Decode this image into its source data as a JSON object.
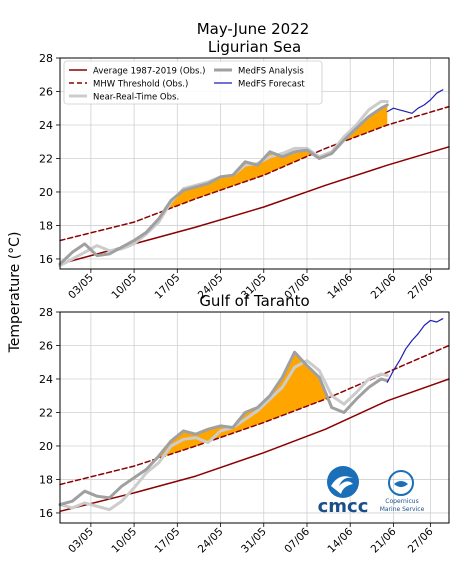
{
  "figure": {
    "title_line1": "May-June 2022",
    "ylabel": "Temperature (°C)"
  },
  "colors": {
    "average": "#8b0000",
    "threshold": "#8b0000",
    "nrt": "#cccccc",
    "analysis": "#a0a0a0",
    "forecast": "#1f1fb4",
    "mhw_fill": "#ffa500",
    "grid": "#d0d0d0"
  },
  "legend": {
    "location": "top-left",
    "items": [
      {
        "key": "average",
        "label": "Average 1987-2019 (Obs.)"
      },
      {
        "key": "threshold",
        "label": "MHW Threshold (Obs.)"
      },
      {
        "key": "nrt",
        "label": "Near-Real-Time Obs."
      },
      {
        "key": "analysis",
        "label": "MedFS Analysis"
      },
      {
        "key": "forecast",
        "label": "MedFS Forecast"
      }
    ]
  },
  "logos": {
    "cmcc": "cmcc",
    "copernicus_line1": "Copernicus",
    "copernicus_line2": "Marine Service"
  },
  "chart_data": [
    {
      "type": "line",
      "title": "Ligurian Sea",
      "xlabel": "",
      "ylabel": "Temperature (°C)",
      "xlim": [
        "2022-04-28",
        "2022-06-30"
      ],
      "ylim": [
        15.4,
        28
      ],
      "yticks": [
        16,
        18,
        20,
        22,
        24,
        26,
        28
      ],
      "xticks": [
        "03/05",
        "10/05",
        "17/05",
        "24/05",
        "31/05",
        "07/06",
        "14/06",
        "21/06",
        "27/06"
      ],
      "grid": true,
      "series": [
        {
          "name": "Average 1987-2019 (Obs.)",
          "key": "average",
          "x": [
            "2022-04-28",
            "2022-05-10",
            "2022-05-20",
            "2022-05-31",
            "2022-06-10",
            "2022-06-20",
            "2022-06-30"
          ],
          "y": [
            15.7,
            16.9,
            17.9,
            19.1,
            20.4,
            21.6,
            22.7
          ]
        },
        {
          "name": "MHW Threshold (Obs.)",
          "key": "threshold",
          "x": [
            "2022-04-28",
            "2022-05-10",
            "2022-05-20",
            "2022-05-31",
            "2022-06-10",
            "2022-06-20",
            "2022-06-30"
          ],
          "y": [
            17.1,
            18.2,
            19.6,
            21.0,
            22.6,
            24.0,
            25.1
          ]
        },
        {
          "name": "Near-Real-Time Obs.",
          "key": "nrt",
          "x": [
            "2022-04-28",
            "2022-04-30",
            "2022-05-02",
            "2022-05-04",
            "2022-05-06",
            "2022-05-08",
            "2022-05-10",
            "2022-05-12",
            "2022-05-14",
            "2022-05-16",
            "2022-05-18",
            "2022-05-20",
            "2022-05-22",
            "2022-05-24",
            "2022-05-26",
            "2022-05-28",
            "2022-05-30",
            "2022-06-01",
            "2022-06-03",
            "2022-06-05",
            "2022-06-07",
            "2022-06-09",
            "2022-06-11",
            "2022-06-13",
            "2022-06-15",
            "2022-06-17",
            "2022-06-19",
            "2022-06-20"
          ],
          "y": [
            15.6,
            16.0,
            16.4,
            16.8,
            16.5,
            16.6,
            16.9,
            17.5,
            18.2,
            19.4,
            20.2,
            20.4,
            20.6,
            20.9,
            21.0,
            21.6,
            21.7,
            22.1,
            22.3,
            22.6,
            22.6,
            22.1,
            22.4,
            23.3,
            24.0,
            24.9,
            25.4,
            25.4
          ]
        },
        {
          "name": "MedFS Analysis",
          "key": "analysis",
          "x": [
            "2022-04-28",
            "2022-04-30",
            "2022-05-02",
            "2022-05-04",
            "2022-05-06",
            "2022-05-08",
            "2022-05-10",
            "2022-05-12",
            "2022-05-14",
            "2022-05-16",
            "2022-05-18",
            "2022-05-20",
            "2022-05-22",
            "2022-05-24",
            "2022-05-26",
            "2022-05-28",
            "2022-05-30",
            "2022-06-01",
            "2022-06-03",
            "2022-06-05",
            "2022-06-07",
            "2022-06-09",
            "2022-06-11",
            "2022-06-13",
            "2022-06-15",
            "2022-06-17",
            "2022-06-19",
            "2022-06-20"
          ],
          "y": [
            15.7,
            16.4,
            16.9,
            16.2,
            16.3,
            16.7,
            17.1,
            17.6,
            18.4,
            19.5,
            20.1,
            20.3,
            20.5,
            20.9,
            21.0,
            21.8,
            21.6,
            22.4,
            22.1,
            22.4,
            22.5,
            22.0,
            22.3,
            23.1,
            23.8,
            24.5,
            25.0,
            25.2
          ]
        },
        {
          "name": "MedFS Forecast",
          "key": "forecast",
          "x": [
            "2022-06-20",
            "2022-06-21",
            "2022-06-22",
            "2022-06-23",
            "2022-06-24",
            "2022-06-25",
            "2022-06-26",
            "2022-06-27",
            "2022-06-28",
            "2022-06-29"
          ],
          "y": [
            24.8,
            25.0,
            24.9,
            24.8,
            24.7,
            25.0,
            25.2,
            25.5,
            25.9,
            26.1
          ]
        }
      ]
    },
    {
      "type": "line",
      "title": "Gulf of Taranto",
      "xlabel": "",
      "ylabel": "Temperature (°C)",
      "xlim": [
        "2022-04-28",
        "2022-06-30"
      ],
      "ylim": [
        15.4,
        28
      ],
      "yticks": [
        16,
        18,
        20,
        22,
        24,
        26,
        28
      ],
      "xticks": [
        "03/05",
        "10/05",
        "17/05",
        "24/05",
        "31/05",
        "07/06",
        "14/06",
        "21/06",
        "27/06"
      ],
      "grid": true,
      "series": [
        {
          "name": "Average 1987-2019 (Obs.)",
          "key": "average",
          "x": [
            "2022-04-28",
            "2022-05-10",
            "2022-05-20",
            "2022-05-31",
            "2022-06-10",
            "2022-06-20",
            "2022-06-30"
          ],
          "y": [
            16.1,
            17.2,
            18.2,
            19.6,
            21.0,
            22.7,
            24.0
          ]
        },
        {
          "name": "MHW Threshold (Obs.)",
          "key": "threshold",
          "x": [
            "2022-04-28",
            "2022-05-10",
            "2022-05-20",
            "2022-05-31",
            "2022-06-10",
            "2022-06-20",
            "2022-06-30"
          ],
          "y": [
            17.7,
            18.8,
            20.0,
            21.4,
            22.8,
            24.4,
            26.0
          ]
        },
        {
          "name": "Near-Real-Time Obs.",
          "key": "nrt",
          "x": [
            "2022-04-28",
            "2022-04-30",
            "2022-05-02",
            "2022-05-04",
            "2022-05-06",
            "2022-05-08",
            "2022-05-10",
            "2022-05-12",
            "2022-05-14",
            "2022-05-16",
            "2022-05-18",
            "2022-05-20",
            "2022-05-22",
            "2022-05-24",
            "2022-05-26",
            "2022-05-28",
            "2022-05-30",
            "2022-06-01",
            "2022-06-03",
            "2022-06-05",
            "2022-06-07",
            "2022-06-09",
            "2022-06-11",
            "2022-06-13",
            "2022-06-15",
            "2022-06-17",
            "2022-06-19",
            "2022-06-20"
          ],
          "y": [
            16.5,
            16.3,
            16.6,
            16.4,
            16.2,
            16.7,
            17.5,
            18.4,
            19.0,
            20.0,
            20.4,
            20.5,
            20.2,
            20.9,
            21.1,
            21.6,
            22.1,
            22.8,
            23.5,
            24.7,
            25.1,
            24.5,
            23.0,
            22.5,
            23.2,
            24.0,
            24.3,
            24.2
          ]
        },
        {
          "name": "MedFS Analysis",
          "key": "analysis",
          "x": [
            "2022-04-28",
            "2022-04-30",
            "2022-05-02",
            "2022-05-04",
            "2022-05-06",
            "2022-05-08",
            "2022-05-10",
            "2022-05-12",
            "2022-05-14",
            "2022-05-16",
            "2022-05-18",
            "2022-05-20",
            "2022-05-22",
            "2022-05-24",
            "2022-05-26",
            "2022-05-28",
            "2022-05-30",
            "2022-06-01",
            "2022-06-03",
            "2022-06-05",
            "2022-06-07",
            "2022-06-09",
            "2022-06-11",
            "2022-06-13",
            "2022-06-15",
            "2022-06-17",
            "2022-06-19",
            "2022-06-20"
          ],
          "y": [
            16.5,
            16.7,
            17.3,
            17.0,
            16.9,
            17.6,
            18.1,
            18.6,
            19.4,
            20.3,
            20.9,
            20.7,
            21.0,
            21.2,
            21.1,
            22.0,
            22.3,
            23.0,
            24.1,
            25.6,
            24.8,
            24.1,
            22.3,
            22.0,
            22.8,
            23.5,
            24.0,
            23.9
          ]
        },
        {
          "name": "MedFS Forecast",
          "key": "forecast",
          "x": [
            "2022-06-20",
            "2022-06-21",
            "2022-06-22",
            "2022-06-23",
            "2022-06-24",
            "2022-06-25",
            "2022-06-26",
            "2022-06-27",
            "2022-06-28",
            "2022-06-29"
          ],
          "y": [
            23.8,
            24.5,
            25.1,
            25.8,
            26.3,
            26.7,
            27.2,
            27.5,
            27.4,
            27.6
          ]
        }
      ]
    }
  ]
}
